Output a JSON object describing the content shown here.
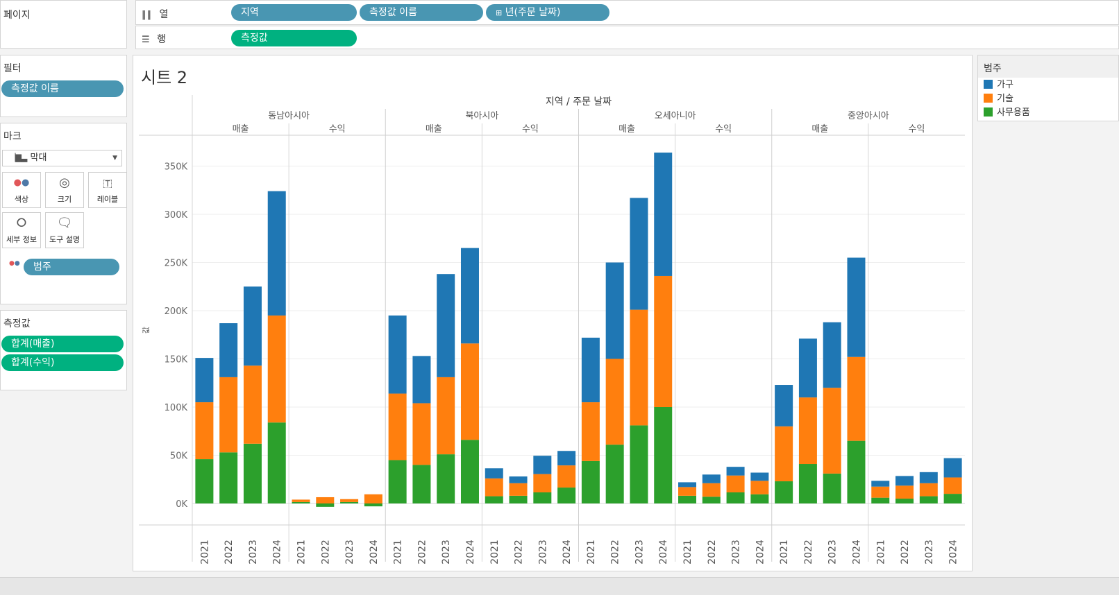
{
  "shelves": {
    "pages_label": "페이지",
    "columns_label": "열",
    "columns_icon": "columns-icon",
    "rows_label": "행",
    "rows_icon": "rows-icon",
    "column_pills": [
      "지역",
      "측정값 이름",
      "년(주문 날짜)"
    ],
    "column_pill_expand_icon": "plus-box-icon",
    "row_pills": [
      "측정값"
    ]
  },
  "filters": {
    "title": "필터",
    "pills": [
      "측정값 이름"
    ]
  },
  "marks": {
    "title": "마크",
    "type_value": "막대",
    "type_icon": "bar-chart-icon",
    "buttons": [
      {
        "label": "색상",
        "icon": "color-dots-icon"
      },
      {
        "label": "크기",
        "icon": "size-icon"
      },
      {
        "label": "레이블",
        "icon": "label-T-icon"
      },
      {
        "label": "세부 정보",
        "icon": "detail-icon"
      },
      {
        "label": "도구 설명",
        "icon": "tooltip-icon"
      }
    ],
    "color_pill": "범주"
  },
  "measures": {
    "title": "측정값",
    "pills": [
      "합계(매출)",
      "합계(수익)"
    ]
  },
  "sheet": {
    "title": "시트 2"
  },
  "legend": {
    "title": "범주",
    "items": [
      {
        "label": "가구",
        "color": "#1f77b4"
      },
      {
        "label": "기술",
        "color": "#ff7f0e"
      },
      {
        "label": "사무용품",
        "color": "#2ca02c"
      }
    ]
  },
  "chart_data": {
    "type": "bar",
    "stacked": true,
    "header_title": "지역 / 주문 날짜",
    "ylabel": "값",
    "ylim": [
      -10000,
      380000
    ],
    "yticks": [
      0,
      50000,
      100000,
      150000,
      200000,
      250000,
      300000,
      350000
    ],
    "ytick_labels": [
      "0K",
      "50K",
      "100K",
      "150K",
      "200K",
      "250K",
      "300K",
      "350K"
    ],
    "grid": true,
    "legend_position": "right",
    "regions": [
      "동남아시아",
      "북아시아",
      "오세아니아",
      "중앙아시아"
    ],
    "measures": [
      "매출",
      "수익"
    ],
    "years": [
      "2021",
      "2022",
      "2023",
      "2024"
    ],
    "series_order": [
      "사무용품",
      "기술",
      "가구"
    ],
    "data": {
      "동남아시아": {
        "매출": {
          "사무용품": [
            46000,
            53000,
            62000,
            84000
          ],
          "기술": [
            59000,
            78000,
            81000,
            111000
          ],
          "가구": [
            46000,
            56000,
            82000,
            129000
          ]
        },
        "수익": {
          "사무용품": [
            1500,
            -3500,
            1500,
            -3000
          ],
          "기술": [
            2500,
            6500,
            3000,
            9500
          ],
          "가구": [
            0,
            0,
            0,
            0
          ]
        }
      },
      "북아시아": {
        "매출": {
          "사무용품": [
            45000,
            40000,
            51000,
            66000
          ],
          "기술": [
            69000,
            64000,
            80000,
            100000
          ],
          "가구": [
            81000,
            49000,
            107000,
            99000
          ]
        },
        "수익": {
          "사무용품": [
            7500,
            8000,
            11500,
            16500
          ],
          "기술": [
            18500,
            13000,
            19000,
            23000
          ],
          "가구": [
            10500,
            7000,
            19000,
            15000
          ]
        }
      },
      "오세아니아": {
        "매출": {
          "사무용품": [
            44000,
            61000,
            81000,
            100000
          ],
          "기술": [
            61000,
            89000,
            120000,
            136000
          ],
          "가구": [
            67000,
            100000,
            116000,
            128000
          ]
        },
        "수익": {
          "사무용품": [
            8000,
            7000,
            11500,
            9500
          ],
          "기술": [
            9000,
            14000,
            17500,
            14000
          ],
          "가구": [
            5000,
            9000,
            9000,
            8500
          ]
        }
      },
      "중앙아시아": {
        "매출": {
          "사무용품": [
            23000,
            41000,
            31000,
            65000
          ],
          "기술": [
            57000,
            69000,
            89000,
            87000
          ],
          "가구": [
            43000,
            61000,
            68000,
            103000
          ]
        },
        "수익": {
          "사무용품": [
            6000,
            5000,
            7500,
            10000
          ],
          "기술": [
            11500,
            13500,
            13500,
            17000
          ],
          "가구": [
            6000,
            10000,
            11500,
            20000
          ]
        }
      }
    }
  }
}
